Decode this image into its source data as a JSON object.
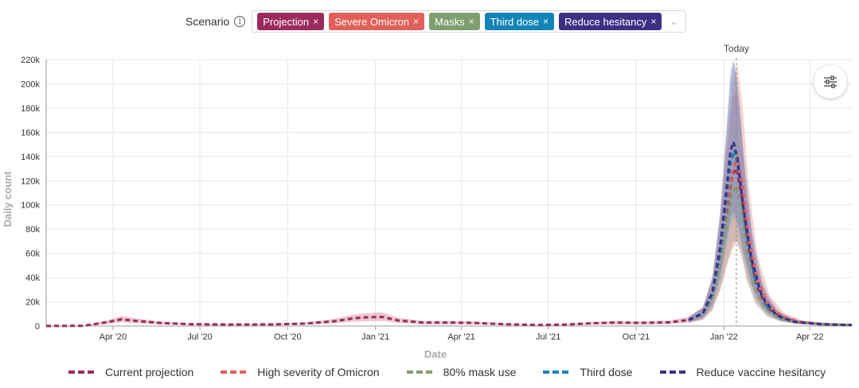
{
  "scenario": {
    "label": "Scenario",
    "chips": [
      {
        "label": "Projection",
        "color": "#9b2b5e"
      },
      {
        "label": "Severe Omicron",
        "color": "#e35f59"
      },
      {
        "label": "Masks",
        "color": "#7f9e6f"
      },
      {
        "label": "Third dose",
        "color": "#1384b8"
      },
      {
        "label": "Reduce hesitancy",
        "color": "#3e2f85"
      }
    ],
    "remove_glyph": "×",
    "dropdown_glyph": "⌄"
  },
  "icons": {
    "info": "info-icon",
    "settings": "sliders-icon"
  },
  "chart_data": {
    "type": "line",
    "xlabel": "Date",
    "ylabel": "Daily count",
    "x_range": [
      "2020-01-22",
      "2022-05-15"
    ],
    "ylim": [
      0,
      220000
    ],
    "y_ticks": [
      0,
      20000,
      40000,
      60000,
      80000,
      100000,
      120000,
      140000,
      160000,
      180000,
      200000,
      220000
    ],
    "y_tick_labels": [
      "0",
      "20k",
      "40k",
      "60k",
      "80k",
      "100k",
      "120k",
      "140k",
      "160k",
      "180k",
      "200k",
      "220k"
    ],
    "x_ticks": [
      "2020-04-01",
      "2020-07-01",
      "2020-10-01",
      "2021-01-01",
      "2021-04-01",
      "2021-07-01",
      "2021-10-01",
      "2022-01-01",
      "2022-04-01"
    ],
    "x_tick_labels": [
      "Apr '20",
      "Jul '20",
      "Oct '20",
      "Jan '21",
      "Apr '21",
      "Jul '21",
      "Oct '21",
      "Jan '22",
      "Apr '22"
    ],
    "grid": true,
    "legend_position": "bottom",
    "annotation": {
      "label": "Today",
      "x": "2022-01-14"
    },
    "series": [
      {
        "name": "Current projection",
        "color": "#9b2b5e",
        "points": [
          [
            "2020-01-22",
            0
          ],
          [
            "2020-03-01",
            200
          ],
          [
            "2020-03-25",
            3000
          ],
          [
            "2020-04-10",
            5500
          ],
          [
            "2020-04-25",
            4200
          ],
          [
            "2020-05-20",
            2500
          ],
          [
            "2020-06-20",
            1500
          ],
          [
            "2020-08-01",
            1200
          ],
          [
            "2020-09-15",
            1300
          ],
          [
            "2020-10-20",
            2000
          ],
          [
            "2020-11-20",
            4000
          ],
          [
            "2020-12-10",
            6500
          ],
          [
            "2020-12-25",
            7200
          ],
          [
            "2021-01-08",
            7500
          ],
          [
            "2021-01-25",
            4500
          ],
          [
            "2021-02-20",
            2800
          ],
          [
            "2021-03-20",
            2800
          ],
          [
            "2021-04-15",
            2500
          ],
          [
            "2021-05-15",
            1500
          ],
          [
            "2021-06-20",
            800
          ],
          [
            "2021-07-20",
            1200
          ],
          [
            "2021-08-15",
            2200
          ],
          [
            "2021-09-10",
            2800
          ],
          [
            "2021-10-05",
            2500
          ],
          [
            "2021-11-05",
            3000
          ],
          [
            "2021-11-25",
            5000
          ],
          [
            "2021-12-10",
            10000
          ],
          [
            "2021-12-20",
            25000
          ],
          [
            "2021-12-28",
            55000
          ],
          [
            "2022-01-04",
            95000
          ],
          [
            "2022-01-10",
            125000
          ],
          [
            "2022-01-14",
            130000
          ],
          [
            "2022-01-19",
            110000
          ],
          [
            "2022-01-25",
            70000
          ],
          [
            "2022-02-03",
            35000
          ],
          [
            "2022-02-15",
            15000
          ],
          [
            "2022-03-01",
            7000
          ],
          [
            "2022-03-20",
            3000
          ],
          [
            "2022-04-15",
            1500
          ],
          [
            "2022-05-15",
            800
          ]
        ],
        "band": {
          "color": "#cf6f8a",
          "lower_ratio": 0.55,
          "upper_ratio": 1.5
        }
      },
      {
        "name": "High severity of Omicron",
        "color": "#e35f59",
        "points": [
          [
            "2021-11-25",
            5000
          ],
          [
            "2021-12-10",
            10000
          ],
          [
            "2021-12-20",
            26000
          ],
          [
            "2021-12-28",
            58000
          ],
          [
            "2022-01-04",
            98000
          ],
          [
            "2022-01-10",
            128000
          ],
          [
            "2022-01-15",
            140000
          ],
          [
            "2022-01-20",
            120000
          ],
          [
            "2022-01-27",
            75000
          ],
          [
            "2022-02-05",
            38000
          ],
          [
            "2022-02-18",
            16000
          ],
          [
            "2022-03-05",
            7000
          ],
          [
            "2022-03-25",
            3000
          ],
          [
            "2022-04-20",
            1400
          ],
          [
            "2022-05-15",
            800
          ]
        ],
        "band": {
          "color": "#e8897f",
          "lower_ratio": 0.5,
          "upper_ratio": 1.55
        }
      },
      {
        "name": "80% mask use",
        "color": "#7f9e6f",
        "points": [
          [
            "2021-11-25",
            5000
          ],
          [
            "2021-12-10",
            9500
          ],
          [
            "2021-12-20",
            23000
          ],
          [
            "2021-12-28",
            50000
          ],
          [
            "2022-01-04",
            85000
          ],
          [
            "2022-01-10",
            110000
          ],
          [
            "2022-01-14",
            116000
          ],
          [
            "2022-01-19",
            98000
          ],
          [
            "2022-01-25",
            62000
          ],
          [
            "2022-02-03",
            30000
          ],
          [
            "2022-02-15",
            13000
          ],
          [
            "2022-03-01",
            6000
          ],
          [
            "2022-03-20",
            2600
          ],
          [
            "2022-04-15",
            1300
          ],
          [
            "2022-05-15",
            700
          ]
        ],
        "band": {
          "color": "#b4c8a8",
          "lower_ratio": 0.6,
          "upper_ratio": 1.45
        }
      },
      {
        "name": "Third dose",
        "color": "#1384b8",
        "points": [
          [
            "2021-11-25",
            5000
          ],
          [
            "2021-12-10",
            10000
          ],
          [
            "2021-12-20",
            27000
          ],
          [
            "2021-12-28",
            60000
          ],
          [
            "2022-01-03",
            100000
          ],
          [
            "2022-01-08",
            135000
          ],
          [
            "2022-01-12",
            145000
          ],
          [
            "2022-01-17",
            125000
          ],
          [
            "2022-01-24",
            80000
          ],
          [
            "2022-02-02",
            40000
          ],
          [
            "2022-02-15",
            16000
          ],
          [
            "2022-03-01",
            7000
          ],
          [
            "2022-03-20",
            3000
          ],
          [
            "2022-04-15",
            1400
          ],
          [
            "2022-05-15",
            800
          ]
        ],
        "band": {
          "color": "#7fa9cf",
          "lower_ratio": 0.62,
          "upper_ratio": 1.5
        }
      },
      {
        "name": "Reduce vaccine hesitancy",
        "color": "#3e2f85",
        "points": [
          [
            "2021-11-25",
            5000
          ],
          [
            "2021-12-10",
            10500
          ],
          [
            "2021-12-20",
            28000
          ],
          [
            "2021-12-28",
            65000
          ],
          [
            "2022-01-03",
            108000
          ],
          [
            "2022-01-08",
            145000
          ],
          [
            "2022-01-11",
            152000
          ],
          [
            "2022-01-15",
            140000
          ],
          [
            "2022-01-21",
            100000
          ],
          [
            "2022-01-30",
            55000
          ],
          [
            "2022-02-10",
            24000
          ],
          [
            "2022-02-25",
            9000
          ],
          [
            "2022-03-15",
            3500
          ],
          [
            "2022-04-10",
            1600
          ],
          [
            "2022-05-15",
            800
          ]
        ],
        "band": {
          "color": "#7a78b4",
          "lower_ratio": 0.62,
          "upper_ratio": 1.45
        }
      }
    ]
  }
}
